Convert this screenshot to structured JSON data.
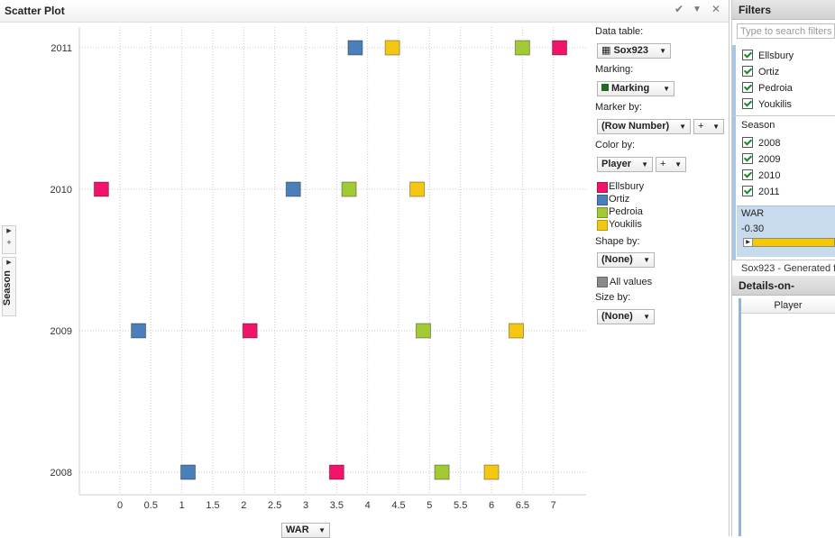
{
  "panel": {
    "title": "Scatter Plot",
    "check_icon": "✔",
    "menu_icon": "▼",
    "close_icon": "✕"
  },
  "rail": {
    "axis_label": "Season",
    "expand_arrow": "▶",
    "plus": "+"
  },
  "legend": {
    "data_table_label": "Data table:",
    "data_table_value": "Sox923",
    "marking_label": "Marking:",
    "marking_value": "Marking",
    "marking_color": "#1f6b1f",
    "marker_by_label": "Marker by:",
    "marker_by_value": "(Row Number)",
    "marker_by_plus": "+",
    "color_by_label": "Color by:",
    "color_by_value": "Player",
    "color_by_plus": "+",
    "items": [
      {
        "name": "Ellsbury",
        "color": "#f0156b"
      },
      {
        "name": "Ortiz",
        "color": "#4a7fba"
      },
      {
        "name": "Pedroia",
        "color": "#a2ca35"
      },
      {
        "name": "Youkilis",
        "color": "#f4c812"
      }
    ],
    "shape_by_label": "Shape by:",
    "shape_by_value": "(None)",
    "all_values_label": "All values",
    "all_values_color": "#8a8a8a",
    "size_by_label": "Size by:",
    "size_by_value": "(None)"
  },
  "x_axis_selector": "WAR",
  "filters": {
    "title": "Filters",
    "search_placeholder": "Type to search filters",
    "players": [
      "Ellsbury",
      "Ortiz",
      "Pedroia",
      "Youkilis"
    ],
    "season_label": "Season",
    "seasons": [
      "2008",
      "2009",
      "2010",
      "2011"
    ],
    "war_label": "WAR",
    "war_value": "-0.30",
    "generated_text": "Sox923 - Generated f"
  },
  "details": {
    "title": "Details-on-Demand",
    "column": "Player"
  },
  "chart_data": {
    "type": "scatter",
    "xlabel": "WAR",
    "ylabel": "Season",
    "x_ticks": [
      0,
      0.5,
      1,
      1.5,
      2,
      2.5,
      3,
      3.5,
      4,
      4.5,
      5,
      5.5,
      6,
      6.5,
      7
    ],
    "y_categories": [
      "2011",
      "2010",
      "2009",
      "2008"
    ],
    "grid": true,
    "series": [
      {
        "name": "Ellsbury",
        "color": "#f0156b",
        "points": [
          {
            "x": 7.1,
            "y": "2011"
          },
          {
            "x": -0.3,
            "y": "2010"
          },
          {
            "x": 2.1,
            "y": "2009"
          },
          {
            "x": 3.5,
            "y": "2008"
          }
        ]
      },
      {
        "name": "Ortiz",
        "color": "#4a7fba",
        "points": [
          {
            "x": 3.8,
            "y": "2011"
          },
          {
            "x": 2.8,
            "y": "2010"
          },
          {
            "x": 0.3,
            "y": "2009"
          },
          {
            "x": 1.1,
            "y": "2008"
          }
        ]
      },
      {
        "name": "Pedroia",
        "color": "#a2ca35",
        "points": [
          {
            "x": 6.5,
            "y": "2011"
          },
          {
            "x": 3.7,
            "y": "2010"
          },
          {
            "x": 4.9,
            "y": "2009"
          },
          {
            "x": 5.2,
            "y": "2008"
          }
        ]
      },
      {
        "name": "Youkilis",
        "color": "#f4c812",
        "points": [
          {
            "x": 4.4,
            "y": "2011"
          },
          {
            "x": 4.8,
            "y": "2010"
          },
          {
            "x": 6.4,
            "y": "2009"
          },
          {
            "x": 6.0,
            "y": "2008"
          }
        ]
      }
    ]
  }
}
